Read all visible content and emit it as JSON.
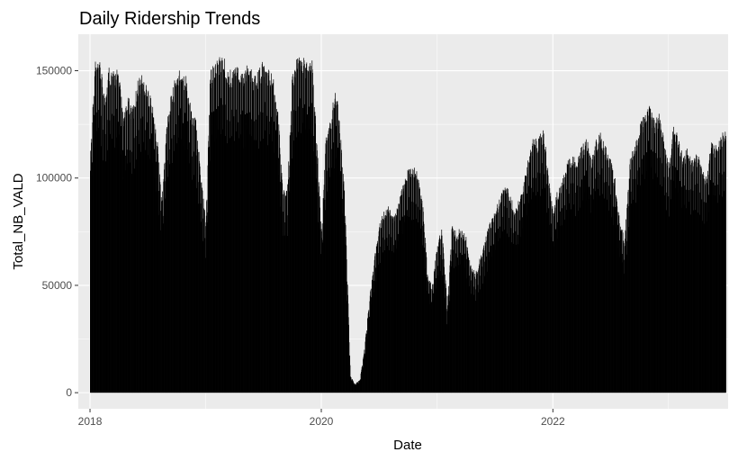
{
  "chart_data": {
    "type": "bar",
    "title": "Daily Ridership Trends",
    "xlabel": "Date",
    "ylabel": "Total_NB_VALD",
    "xlim": [
      "2017-11-25",
      "2023-07-08"
    ],
    "ylim": [
      -7500,
      167000
    ],
    "x_ticks": [
      "2018",
      "2020",
      "2022"
    ],
    "y_ticks": [
      0,
      50000,
      100000,
      150000
    ],
    "y_tick_labels": [
      "0",
      "50000",
      "100000",
      "150000"
    ],
    "x_range": [
      "2018-01-01",
      "2023-06-30"
    ],
    "grid": true,
    "legend": "none",
    "colors": {
      "panel": "#ebebeb",
      "grid": "#ffffff",
      "bars": "#000000",
      "tick_text": "#4d4d4d"
    },
    "series": [
      {
        "x": [
          "2018-01-01",
          "2018-01-15",
          "2018-02-01",
          "2018-02-15",
          "2018-03-01",
          "2018-03-15",
          "2018-04-01",
          "2018-04-15",
          "2018-05-01",
          "2018-05-15",
          "2018-06-01",
          "2018-06-15",
          "2018-07-01",
          "2018-07-15",
          "2018-08-01",
          "2018-08-15",
          "2018-09-01",
          "2018-09-15",
          "2018-10-01",
          "2018-10-15",
          "2018-11-01",
          "2018-11-15",
          "2018-12-01",
          "2018-12-15",
          "2019-01-01",
          "2019-01-15",
          "2019-02-01",
          "2019-02-15",
          "2019-03-01",
          "2019-03-15",
          "2019-04-01",
          "2019-04-15",
          "2019-05-01",
          "2019-05-15",
          "2019-06-01",
          "2019-06-15",
          "2019-07-01",
          "2019-07-15",
          "2019-08-01",
          "2019-08-15",
          "2019-09-01",
          "2019-09-15",
          "2019-10-01",
          "2019-10-15",
          "2019-11-01",
          "2019-11-15",
          "2019-12-01",
          "2019-12-15",
          "2020-01-01",
          "2020-01-15",
          "2020-02-01",
          "2020-02-15",
          "2020-03-01",
          "2020-03-15",
          "2020-04-01",
          "2020-04-15",
          "2020-05-01",
          "2020-05-15",
          "2020-06-01",
          "2020-06-15",
          "2020-07-01",
          "2020-07-15",
          "2020-08-01",
          "2020-08-15",
          "2020-09-01",
          "2020-09-15",
          "2020-10-01",
          "2020-10-15",
          "2020-11-01",
          "2020-11-15",
          "2020-12-01",
          "2020-12-15",
          "2021-01-01",
          "2021-01-15",
          "2021-02-01",
          "2021-02-15",
          "2021-03-01",
          "2021-03-15",
          "2021-04-01",
          "2021-04-15",
          "2021-05-01",
          "2021-05-15",
          "2021-06-01",
          "2021-06-15",
          "2021-07-01",
          "2021-07-15",
          "2021-08-01",
          "2021-08-15",
          "2021-09-01",
          "2021-09-15",
          "2021-10-01",
          "2021-10-15",
          "2021-11-01",
          "2021-11-15",
          "2021-12-01",
          "2021-12-15",
          "2022-01-01",
          "2022-01-15",
          "2022-02-01",
          "2022-02-15",
          "2022-03-01",
          "2022-03-15",
          "2022-04-01",
          "2022-04-15",
          "2022-05-01",
          "2022-05-15",
          "2022-06-01",
          "2022-06-15",
          "2022-07-01",
          "2022-07-15",
          "2022-08-01",
          "2022-08-15",
          "2022-09-01",
          "2022-09-15",
          "2022-10-01",
          "2022-10-15",
          "2022-11-01",
          "2022-11-15",
          "2022-12-01",
          "2022-12-15",
          "2023-01-01",
          "2023-01-15",
          "2023-02-01",
          "2023-02-15",
          "2023-03-01",
          "2023-03-15",
          "2023-04-01",
          "2023-04-15",
          "2023-05-01",
          "2023-05-15",
          "2023-06-01",
          "2023-06-15",
          "2023-06-30"
        ],
        "values": [
          110000,
          155000,
          154000,
          139000,
          153000,
          150000,
          152000,
          128000,
          138000,
          133000,
          147000,
          149000,
          143000,
          137000,
          118000,
          90000,
          130000,
          140000,
          150000,
          152000,
          148000,
          132000,
          128000,
          105000,
          80000,
          150000,
          155000,
          158000,
          156000,
          150000,
          153000,
          152000,
          151000,
          154000,
          148000,
          150000,
          155000,
          152000,
          148000,
          135000,
          95000,
          94000,
          150000,
          156000,
          158000,
          155000,
          158000,
          125000,
          75000,
          120000,
          130000,
          145000,
          120000,
          90000,
          8000,
          4000,
          6000,
          20000,
          45000,
          62000,
          78000,
          85000,
          87000,
          82000,
          90000,
          98000,
          105000,
          106000,
          103000,
          90000,
          55000,
          50000,
          70000,
          77000,
          40000,
          78000,
          75000,
          77000,
          73000,
          60000,
          56000,
          63000,
          72000,
          80000,
          85000,
          90000,
          100000,
          95000,
          85000,
          90000,
          100000,
          110000,
          120000,
          118000,
          125000,
          105000,
          85000,
          95000,
          100000,
          110000,
          112000,
          108000,
          115000,
          120000,
          110000,
          118000,
          122000,
          115000,
          110000,
          100000,
          80000,
          72000,
          110000,
          115000,
          125000,
          130000,
          135000,
          128000,
          130000,
          120000,
          105000,
          125000,
          120000,
          110000,
          115000,
          108000,
          112000,
          105000,
          100000,
          118000,
          115000,
          120000,
          125000
        ]
      }
    ]
  }
}
